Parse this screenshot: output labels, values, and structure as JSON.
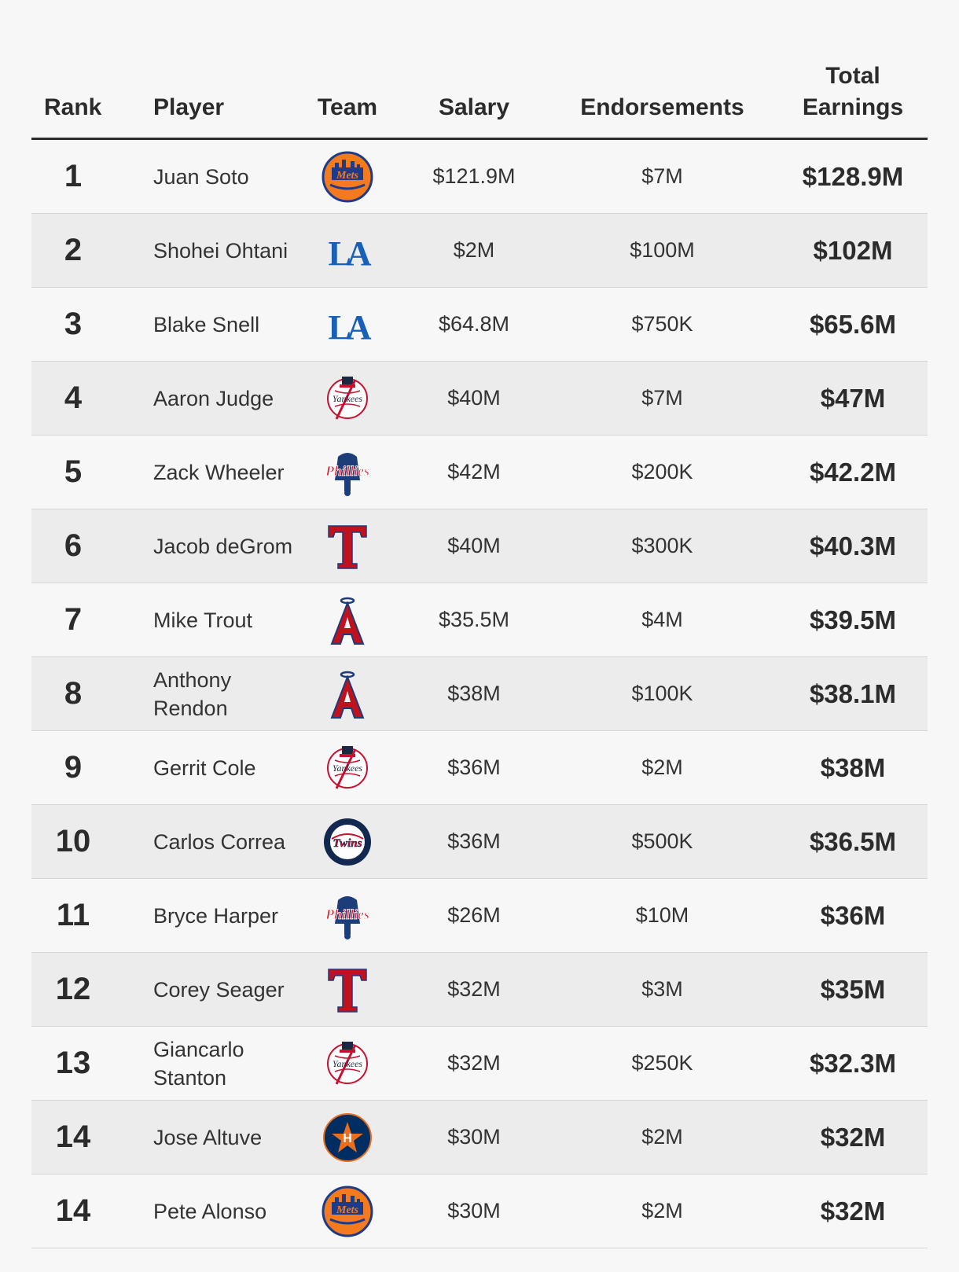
{
  "header": {
    "rank": "Rank",
    "player": "Player",
    "team": "Team",
    "salary": "Salary",
    "endorsements": "Endorsements",
    "total_line1": "Total",
    "total_line2": "Earnings"
  },
  "rows": [
    {
      "rank": "1",
      "player": "Juan Soto",
      "team_logo": "mets-logo-icon",
      "salary": "$121.9M",
      "endorsements": "$7M",
      "total": "$128.9M"
    },
    {
      "rank": "2",
      "player": "Shohei Ohtani",
      "team_logo": "dodgers-logo-icon",
      "salary": "$2M",
      "endorsements": "$100M",
      "total": "$102M"
    },
    {
      "rank": "3",
      "player": "Blake Snell",
      "team_logo": "dodgers-logo-icon",
      "salary": "$64.8M",
      "endorsements": "$750K",
      "total": "$65.6M"
    },
    {
      "rank": "4",
      "player": "Aaron Judge",
      "team_logo": "yankees-logo-icon",
      "salary": "$40M",
      "endorsements": "$7M",
      "total": "$47M"
    },
    {
      "rank": "5",
      "player": "Zack Wheeler",
      "team_logo": "phillies-logo-icon",
      "salary": "$42M",
      "endorsements": "$200K",
      "total": "$42.2M"
    },
    {
      "rank": "6",
      "player": "Jacob deGrom",
      "team_logo": "rangers-logo-icon",
      "salary": "$40M",
      "endorsements": "$300K",
      "total": "$40.3M"
    },
    {
      "rank": "7",
      "player": "Mike Trout",
      "team_logo": "angels-logo-icon",
      "salary": "$35.5M",
      "endorsements": "$4M",
      "total": "$39.5M"
    },
    {
      "rank": "8",
      "player": "Anthony Rendon",
      "team_logo": "angels-logo-icon",
      "salary": "$38M",
      "endorsements": "$100K",
      "total": "$38.1M"
    },
    {
      "rank": "9",
      "player": "Gerrit Cole",
      "team_logo": "yankees-logo-icon",
      "salary": "$36M",
      "endorsements": "$2M",
      "total": "$38M"
    },
    {
      "rank": "10",
      "player": "Carlos Correa",
      "team_logo": "twins-logo-icon",
      "salary": "$36M",
      "endorsements": "$500K",
      "total": "$36.5M"
    },
    {
      "rank": "11",
      "player": "Bryce Harper",
      "team_logo": "phillies-logo-icon",
      "salary": "$26M",
      "endorsements": "$10M",
      "total": "$36M"
    },
    {
      "rank": "12",
      "player": "Corey Seager",
      "team_logo": "rangers-logo-icon",
      "salary": "$32M",
      "endorsements": "$3M",
      "total": "$35M"
    },
    {
      "rank": "13",
      "player": "Giancarlo Stanton",
      "team_logo": "yankees-logo-icon",
      "salary": "$32M",
      "endorsements": "$250K",
      "total": "$32.3M"
    },
    {
      "rank": "14",
      "player": "Jose Altuve",
      "team_logo": "astros-logo-icon",
      "salary": "$30M",
      "endorsements": "$2M",
      "total": "$32M"
    },
    {
      "rank": "14",
      "player": "Pete Alonso",
      "team_logo": "mets-logo-icon",
      "salary": "$30M",
      "endorsements": "$2M",
      "total": "$32M"
    }
  ]
}
